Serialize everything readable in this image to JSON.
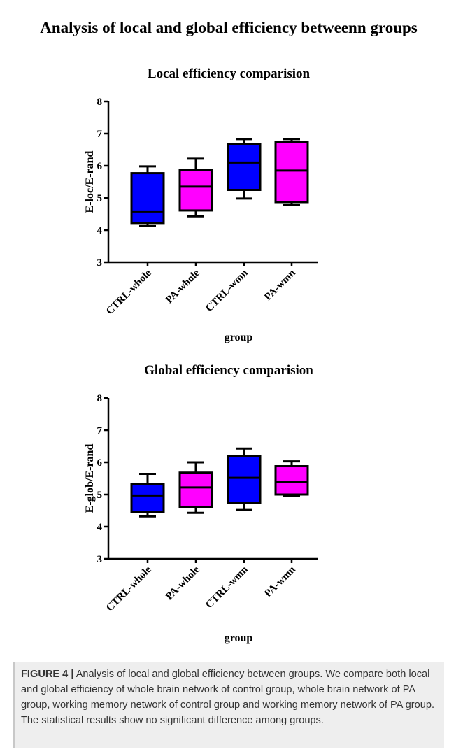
{
  "figure_title": "Analysis of local and global efficiency betweenn groups",
  "caption": {
    "label": "FIGURE 4 |",
    "text": " Analysis of local and global efficiency between groups. We compare both local and global efficiency of whole brain network of control group, whole brain network of PA group, working memory network of control group and working memory network of PA group. The statistical results show no significant difference among groups."
  },
  "colors": {
    "ctrl": "#0000ff",
    "pa": "#ff00ff",
    "line": "#000000"
  },
  "chart_data": [
    {
      "type": "box",
      "title": "Local efficiency comparision",
      "xlabel": "group",
      "ylabel": "E-loc/E-rand",
      "ylim": [
        3,
        8
      ],
      "yticks": [
        "3",
        "4",
        "5",
        "6",
        "7",
        "8"
      ],
      "categories": [
        "CTRL-whole",
        "PA-whole",
        "CTRL-wmn",
        "PA-wmn"
      ],
      "boxes": [
        {
          "min": 4.12,
          "q1": 4.22,
          "median": 4.58,
          "q3": 5.77,
          "max": 5.98
        },
        {
          "min": 4.43,
          "q1": 4.61,
          "median": 5.35,
          "q3": 5.87,
          "max": 6.22
        },
        {
          "min": 4.98,
          "q1": 5.25,
          "median": 6.1,
          "q3": 6.67,
          "max": 6.83
        },
        {
          "min": 4.78,
          "q1": 4.87,
          "median": 5.85,
          "q3": 6.73,
          "max": 6.83
        }
      ]
    },
    {
      "type": "box",
      "title": "Global efficiency comparision",
      "xlabel": "group",
      "ylabel": "E-glob/E-rand",
      "ylim": [
        3,
        8
      ],
      "yticks": [
        "3",
        "4",
        "5",
        "6",
        "7",
        "8"
      ],
      "categories": [
        "CTRL-whole",
        "PA-whole",
        "CTRL-wmn",
        "PA-wmn"
      ],
      "boxes": [
        {
          "min": 4.32,
          "q1": 4.45,
          "median": 4.97,
          "q3": 5.33,
          "max": 5.64
        },
        {
          "min": 4.43,
          "q1": 4.6,
          "median": 5.22,
          "q3": 5.68,
          "max": 6.0
        },
        {
          "min": 4.52,
          "q1": 4.74,
          "median": 5.52,
          "q3": 6.2,
          "max": 6.43
        },
        {
          "min": 4.96,
          "q1": 5.0,
          "median": 5.38,
          "q3": 5.88,
          "max": 6.03
        }
      ]
    }
  ]
}
